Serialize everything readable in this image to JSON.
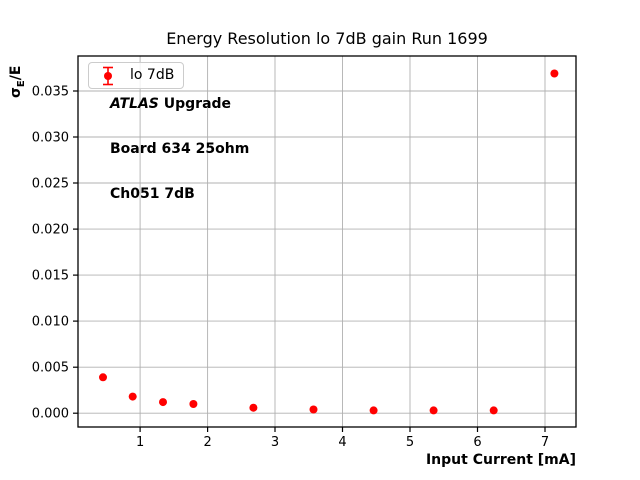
{
  "chart_data": {
    "type": "scatter",
    "title": "Energy Resolution lo 7dB gain Run 1699",
    "xlabel": "Input Current [mA]",
    "ylabel": "σE/E",
    "series": [
      {
        "name": "lo 7dB",
        "marker": "errorbar-dot",
        "color": "#ff0000",
        "x": [
          0.45,
          0.89,
          1.34,
          1.79,
          2.68,
          3.57,
          4.46,
          5.35,
          6.24,
          7.14
        ],
        "y": [
          0.0039,
          0.0018,
          0.0012,
          0.001,
          0.0006,
          0.0004,
          0.0003,
          0.0003,
          0.0003,
          0.0369
        ]
      }
    ],
    "xlim": [
      0.08,
      7.46
    ],
    "ylim": [
      -0.0015,
      0.0388
    ],
    "xticks": [
      1,
      2,
      3,
      4,
      5,
      6,
      7
    ],
    "yticks": [
      0,
      0.005,
      0.01,
      0.015,
      0.02,
      0.025,
      0.03,
      0.035
    ],
    "ytick_labels": [
      "0.000",
      "0.005",
      "0.010",
      "0.015",
      "0.020",
      "0.025",
      "0.030",
      "0.035"
    ],
    "grid": true,
    "legend_position": "upper-left",
    "grid_color": "#b0b0b0"
  },
  "ylabel_parts": {
    "sigma": "σ",
    "sub": "E",
    "rest": "/E"
  },
  "annotation": {
    "line1_italic": "ATLAS",
    "line1_rest": " Upgrade",
    "line2": "Board 634 25ohm",
    "line3": "Ch051 7dB"
  }
}
